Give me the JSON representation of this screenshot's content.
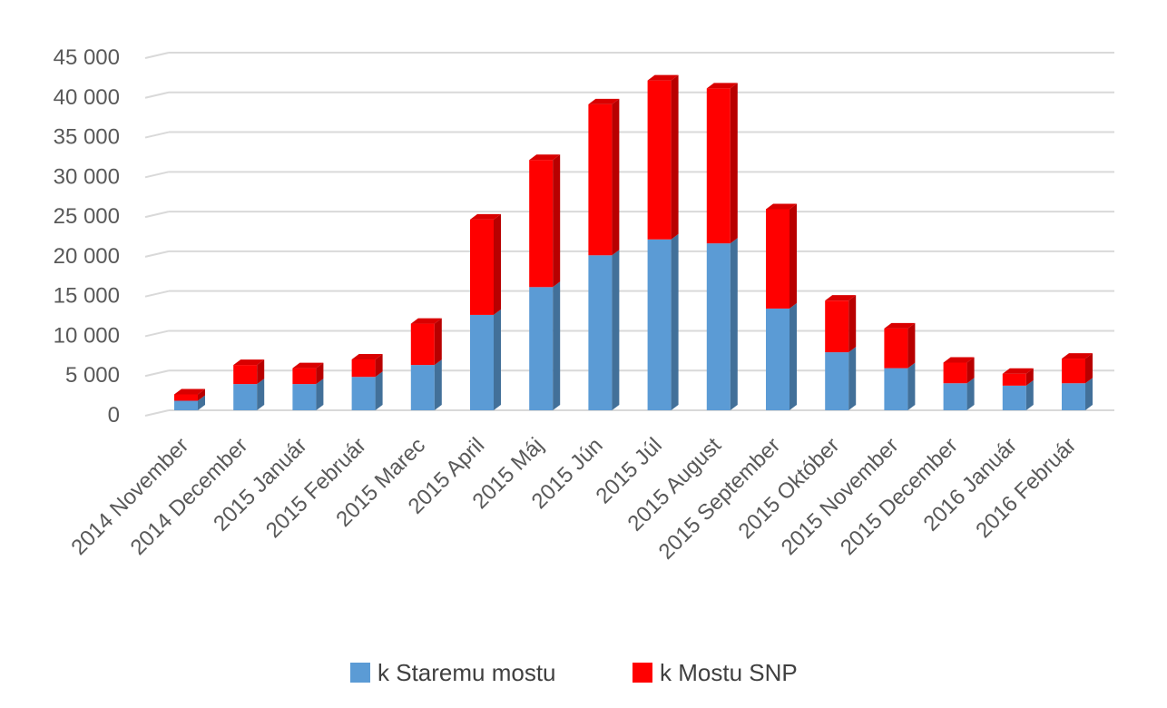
{
  "chart_data": {
    "type": "bar",
    "stacked": true,
    "three_d": true,
    "categories": [
      "2014  November",
      "2014  December",
      "2015  Január",
      "2015  Február",
      "2015  Marec",
      "2015  April",
      "2015  Máj",
      "2015  Jún",
      "2015  Júl",
      "2015  August",
      "2015  September",
      "2015  Október",
      "2015  November",
      "2015  December",
      "2016  Január",
      "2016  Február"
    ],
    "series": [
      {
        "name": "k Staremu mostu",
        "color": "#5b9bd5",
        "values": [
          1200,
          3300,
          3300,
          4200,
          5700,
          12000,
          15500,
          19500,
          21500,
          21000,
          12800,
          7300,
          5300,
          3400,
          3100,
          3400
        ]
      },
      {
        "name": "k Mostu SNP",
        "color": "#ff0000",
        "values": [
          800,
          2400,
          2000,
          2200,
          5200,
          12000,
          16000,
          19000,
          20000,
          19500,
          12500,
          6500,
          5000,
          2600,
          1500,
          3100
        ]
      }
    ],
    "y_ticks": [
      "0",
      "5 000",
      "10 000",
      "15 000",
      "20 000",
      "25 000",
      "30 000",
      "35 000",
      "40 000",
      "45 000"
    ],
    "ylim": [
      0,
      45000
    ],
    "grid": true,
    "legend_position": "bottom"
  }
}
